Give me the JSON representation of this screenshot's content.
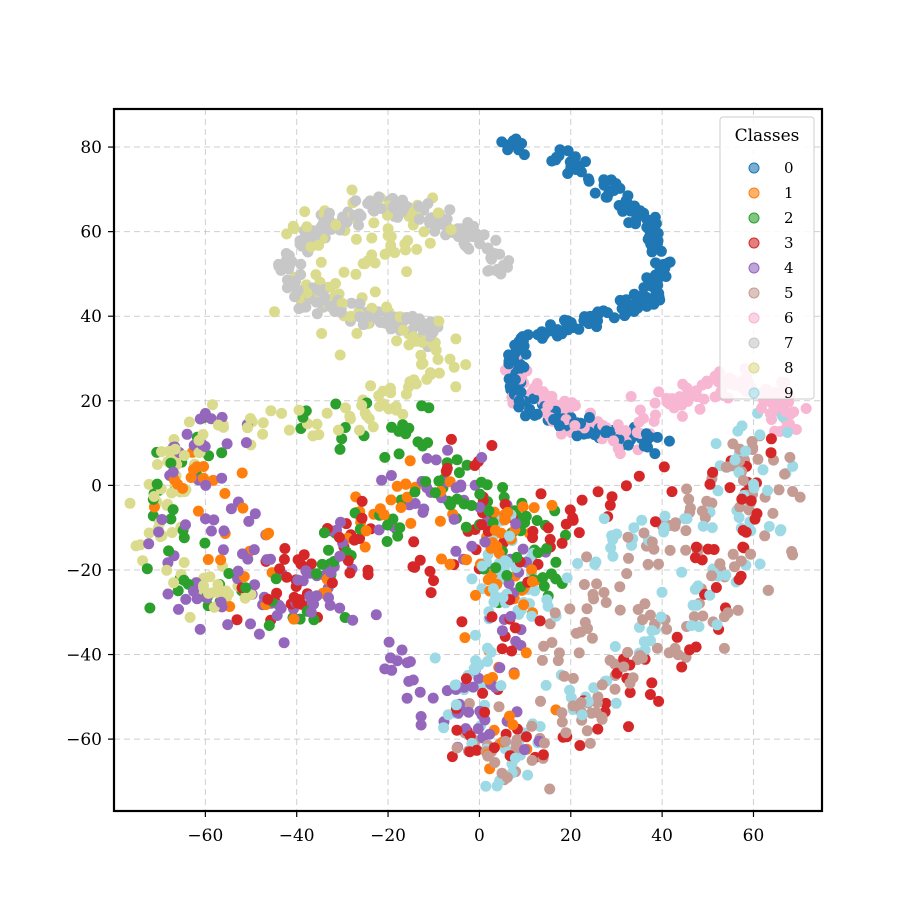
{
  "chart_data": {
    "type": "scatter",
    "title": "",
    "xlabel": "",
    "ylabel": "",
    "xlim": [
      -80,
      75
    ],
    "ylim": [
      -77,
      89
    ],
    "xticks": [
      -60,
      -40,
      -20,
      0,
      20,
      40,
      60
    ],
    "yticks": [
      -60,
      -40,
      -20,
      0,
      20,
      40,
      60,
      80
    ],
    "xtick_labels": [
      "−60",
      "−40",
      "−20",
      "0",
      "20",
      "40",
      "60"
    ],
    "ytick_labels": [
      "−60",
      "−40",
      "−20",
      "0",
      "20",
      "40",
      "60",
      "80"
    ],
    "grid": true,
    "legend": {
      "title": "Classes",
      "placement": "top-right",
      "entries": [
        "0",
        "1",
        "2",
        "3",
        "4",
        "5",
        "6",
        "7",
        "8",
        "9"
      ]
    },
    "series": [
      {
        "name": "0",
        "color": "#1f77b4",
        "curve": [
          [
            5,
            81
          ],
          [
            15,
            78
          ],
          [
            25,
            73
          ],
          [
            33,
            66
          ],
          [
            38,
            60
          ],
          [
            40,
            52
          ],
          [
            38,
            45
          ],
          [
            30,
            41
          ],
          [
            18,
            38
          ],
          [
            9,
            33
          ],
          [
            8,
            25
          ],
          [
            11,
            19
          ],
          [
            17,
            16
          ],
          [
            25,
            13
          ],
          [
            33,
            11
          ],
          [
            40,
            10
          ]
        ],
        "spread": 1.2,
        "count": 260
      },
      {
        "name": "1",
        "color": "#ff7f0e",
        "curve": [
          [
            -70,
            -5
          ],
          [
            -62,
            8
          ],
          [
            -50,
            -25
          ],
          [
            -35,
            -22
          ],
          [
            -25,
            -5
          ],
          [
            -15,
            2
          ],
          [
            0,
            -30
          ],
          [
            5,
            -10
          ],
          [
            10,
            -5
          ],
          [
            3,
            -50
          ],
          [
            8,
            -62
          ]
        ],
        "spread": 4,
        "count": 110
      },
      {
        "name": "2",
        "color": "#2ca02c",
        "curve": [
          [
            -60,
            15
          ],
          [
            -70,
            -5
          ],
          [
            -68,
            -20
          ],
          [
            -58,
            -30
          ],
          [
            -42,
            -32
          ],
          [
            -35,
            -25
          ],
          [
            -28,
            -10
          ],
          [
            -18,
            -8
          ],
          [
            -10,
            -5
          ],
          [
            15,
            -5
          ],
          [
            13,
            -28
          ],
          [
            -20,
            20
          ],
          [
            -40,
            15
          ]
        ],
        "spread": 4,
        "count": 140
      },
      {
        "name": "3",
        "color": "#d62728",
        "curve": [
          [
            -8,
            8
          ],
          [
            2,
            -5
          ],
          [
            8,
            -20
          ],
          [
            5,
            -35
          ],
          [
            -5,
            -58
          ],
          [
            0,
            -65
          ],
          [
            10,
            -60
          ],
          [
            18,
            -58
          ],
          [
            25,
            -58
          ],
          [
            30,
            -50
          ],
          [
            38,
            -42
          ],
          [
            45,
            -32
          ],
          [
            52,
            -22
          ],
          [
            58,
            -8
          ],
          [
            62,
            5
          ],
          [
            -48,
            -28
          ],
          [
            -30,
            -10
          ],
          [
            -18,
            -5
          ]
        ],
        "spread": 4,
        "count": 170
      },
      {
        "name": "4",
        "color": "#9467bd",
        "curve": [
          [
            -70,
            -10
          ],
          [
            -60,
            -25
          ],
          [
            -50,
            -27
          ],
          [
            -38,
            -32
          ],
          [
            -32,
            -20
          ],
          [
            -20,
            -10
          ],
          [
            -15,
            0
          ],
          [
            -10,
            -5
          ],
          [
            -5,
            3
          ],
          [
            0,
            -15
          ],
          [
            10,
            -10
          ],
          [
            5,
            -35
          ],
          [
            -5,
            -58
          ],
          [
            5,
            -62
          ],
          [
            -68,
            5
          ],
          [
            -55,
            15
          ]
        ],
        "spread": 4,
        "count": 190
      },
      {
        "name": "5",
        "color": "#c49c94",
        "curve": [
          [
            -5,
            -58
          ],
          [
            5,
            -68
          ],
          [
            15,
            -62
          ],
          [
            25,
            -52
          ],
          [
            30,
            -45
          ],
          [
            40,
            -35
          ],
          [
            50,
            -28
          ],
          [
            55,
            -20
          ],
          [
            60,
            -8
          ],
          [
            62,
            8
          ],
          [
            10,
            -45
          ]
        ],
        "spread": 4,
        "count": 170
      },
      {
        "name": "6",
        "color": "#f7b6d2",
        "curve": [
          [
            8,
            28
          ],
          [
            12,
            22
          ],
          [
            18,
            16
          ],
          [
            25,
            13
          ],
          [
            32,
            12
          ],
          [
            38,
            18
          ],
          [
            45,
            21
          ],
          [
            52,
            23
          ],
          [
            60,
            24
          ],
          [
            66,
            20
          ],
          [
            68,
            12
          ]
        ],
        "spread": 2,
        "count": 170
      },
      {
        "name": "7",
        "color": "#c7c7c7",
        "curve": [
          [
            5,
            50
          ],
          [
            0,
            57
          ],
          [
            -8,
            63
          ],
          [
            -15,
            66
          ],
          [
            -23,
            66
          ],
          [
            -30,
            63
          ],
          [
            -38,
            58
          ],
          [
            -42,
            52
          ],
          [
            -38,
            45
          ],
          [
            -32,
            42
          ],
          [
            -22,
            40
          ],
          [
            -15,
            38
          ],
          [
            -10,
            35
          ]
        ],
        "spread": 1.5,
        "count": 200
      },
      {
        "name": "8",
        "color": "#dbdb8d",
        "curve": [
          [
            -40,
            55
          ],
          [
            -35,
            62
          ],
          [
            -26,
            66
          ],
          [
            -18,
            66
          ],
          [
            -12,
            62
          ],
          [
            -38,
            44
          ],
          [
            -28,
            40
          ],
          [
            -18,
            38
          ],
          [
            -10,
            35
          ],
          [
            -7,
            30
          ],
          [
            -20,
            20
          ],
          [
            -30,
            17
          ],
          [
            -42,
            16
          ],
          [
            -55,
            15
          ],
          [
            -65,
            10
          ],
          [
            -70,
            -5
          ],
          [
            -68,
            -15
          ],
          [
            -60,
            -25
          ],
          [
            -50,
            -28
          ]
        ],
        "spread": 3,
        "count": 230
      },
      {
        "name": "9",
        "color": "#9edae5",
        "curve": [
          [
            0,
            -40
          ],
          [
            -5,
            -55
          ],
          [
            2,
            -68
          ],
          [
            12,
            -60
          ],
          [
            20,
            -55
          ],
          [
            28,
            -48
          ],
          [
            35,
            -38
          ],
          [
            42,
            -33
          ],
          [
            52,
            -25
          ],
          [
            58,
            -18
          ],
          [
            60,
            -5
          ],
          [
            63,
            5
          ],
          [
            66,
            12
          ],
          [
            10,
            -30
          ],
          [
            5,
            -10
          ],
          [
            0,
            -28
          ]
        ],
        "spread": 3.5,
        "count": 170
      }
    ]
  }
}
